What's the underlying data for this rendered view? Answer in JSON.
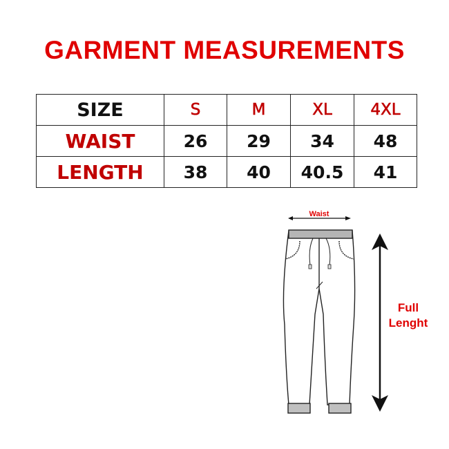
{
  "title": "GARMENT MEASUREMENTS",
  "table": {
    "header": [
      "SIZE",
      "S",
      "M",
      "XL",
      "4XL"
    ],
    "rows": [
      {
        "label": "WAIST",
        "values": [
          "26",
          "29",
          "34",
          "48"
        ]
      },
      {
        "label": "LENGTH",
        "values": [
          "38",
          "40",
          "40.5",
          "41"
        ]
      }
    ]
  },
  "diagram": {
    "waist_label": "Waist",
    "length_label_line1": "Full",
    "length_label_line2": "Lenght"
  },
  "colors": {
    "accent": "#e00000",
    "table_label": "#c00000"
  }
}
